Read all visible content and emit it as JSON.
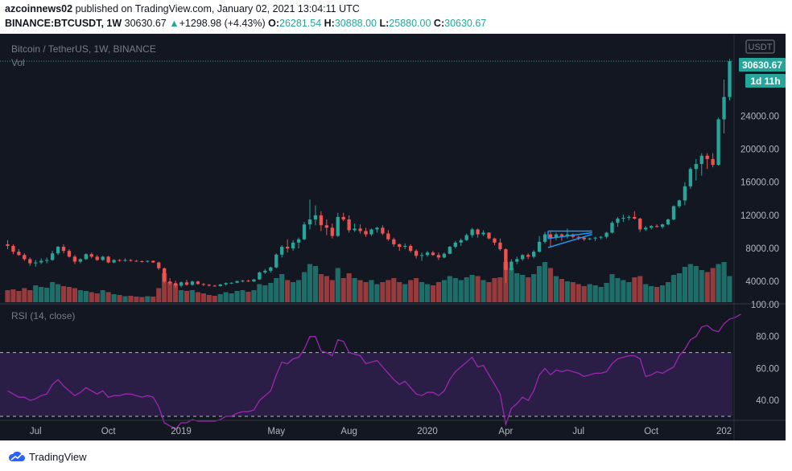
{
  "header": {
    "author": "azcoinnews02",
    "published_text": "published on TradingView.com, January 02, 2021 13:04:11 UTC",
    "symbol": "BINANCE:BTCUSDT, 1W",
    "last": "30630.67",
    "change_arrow": "▲",
    "change": "+1298.98 (+4.43%)",
    "o_label": "O:",
    "o_val": "26281.54",
    "h_label": "H:",
    "h_val": "30888.00",
    "l_label": "L:",
    "l_val": "25880.00",
    "c_label": "C:",
    "c_val": "30630.67"
  },
  "chart": {
    "legend_title": "Bitcoin / TetherUS, 1W, BINANCE",
    "vol_label": "Vol",
    "currency_badge": "USDT",
    "price_tag": "30630.67",
    "countdown_tag": "1d 11h",
    "rsi_label": "RSI (14, close)",
    "colors": {
      "up": "#26a69a",
      "down": "#ef5350",
      "background": "#131722",
      "rsi_line": "#9c27b0",
      "rsi_band": "#2a1e47",
      "triangle": "#2196f3"
    }
  },
  "footer": {
    "brand": "TradingView",
    "logo_icon": "tradingview-cloud-icon"
  },
  "chart_data": {
    "type": "candlestick",
    "price_axis_ticks": [
      "4000.00",
      "8000.00",
      "12000.00",
      "16000.00",
      "20000.00",
      "24000.00"
    ],
    "rsi_axis_ticks": [
      "100.00",
      "80.00",
      "60.00",
      "40.00"
    ],
    "time_axis_ticks": [
      "Jul",
      "Oct",
      "2019",
      "May",
      "Aug",
      "2020",
      "Apr",
      "Jul",
      "Oct",
      "202"
    ],
    "price_range": [
      1400,
      32000
    ],
    "rsi_range": [
      28,
      100
    ],
    "rsi_bands": [
      70,
      30
    ],
    "candles": [
      [
        8500,
        9000,
        7900,
        8300
      ],
      [
        8300,
        8500,
        7300,
        7600
      ],
      [
        7600,
        7900,
        7100,
        7200
      ],
      [
        7200,
        7400,
        6500,
        6700
      ],
      [
        6700,
        6900,
        5900,
        6200
      ],
      [
        6200,
        6600,
        5800,
        6300
      ],
      [
        6300,
        6800,
        6100,
        6500
      ],
      [
        6500,
        6900,
        6200,
        6600
      ],
      [
        6600,
        7700,
        6500,
        7400
      ],
      [
        7400,
        8300,
        7200,
        8200
      ],
      [
        8200,
        8500,
        7400,
        7700
      ],
      [
        7700,
        7900,
        6900,
        7000
      ],
      [
        7000,
        7200,
        6100,
        6400
      ],
      [
        6400,
        6800,
        6200,
        6700
      ],
      [
        6700,
        7400,
        6600,
        7300
      ],
      [
        7300,
        7500,
        6800,
        7000
      ],
      [
        7000,
        7200,
        6500,
        6600
      ],
      [
        6600,
        7100,
        6500,
        7000
      ],
      [
        7000,
        7100,
        6200,
        6300
      ],
      [
        6300,
        6700,
        6200,
        6600
      ],
      [
        6600,
        6700,
        6400,
        6500
      ],
      [
        6500,
        6800,
        6400,
        6600
      ],
      [
        6600,
        6700,
        6400,
        6500
      ],
      [
        6500,
        6600,
        6400,
        6450
      ],
      [
        6450,
        6550,
        6300,
        6400
      ],
      [
        6400,
        6550,
        6300,
        6500
      ],
      [
        6500,
        6550,
        6250,
        6300
      ],
      [
        6300,
        6400,
        5400,
        5600
      ],
      [
        5600,
        5700,
        3800,
        4000
      ],
      [
        4000,
        4400,
        3600,
        3800
      ],
      [
        3800,
        4100,
        3200,
        3500
      ],
      [
        3500,
        4000,
        3300,
        3900
      ],
      [
        3900,
        4200,
        3500,
        3600
      ],
      [
        3600,
        4100,
        3500,
        4000
      ],
      [
        4000,
        4100,
        3600,
        3700
      ],
      [
        3700,
        3800,
        3450,
        3600
      ],
      [
        3600,
        3700,
        3400,
        3500
      ],
      [
        3500,
        3600,
        3380,
        3450
      ],
      [
        3450,
        3700,
        3400,
        3650
      ],
      [
        3650,
        3900,
        3500,
        3800
      ],
      [
        3800,
        3900,
        3700,
        3850
      ],
      [
        3850,
        4100,
        3800,
        4050
      ],
      [
        4050,
        4200,
        3900,
        4100
      ],
      [
        4100,
        4200,
        3950,
        4000
      ],
      [
        4000,
        4300,
        3950,
        4250
      ],
      [
        4250,
        5200,
        4200,
        5100
      ],
      [
        5100,
        5500,
        4900,
        5300
      ],
      [
        5300,
        5800,
        5100,
        5700
      ],
      [
        5700,
        7400,
        5600,
        7250
      ],
      [
        7250,
        8400,
        6900,
        8200
      ],
      [
        8200,
        9100,
        7500,
        8000
      ],
      [
        8000,
        9000,
        7700,
        8700
      ],
      [
        8700,
        9300,
        8000,
        9100
      ],
      [
        9100,
        11200,
        9000,
        10900
      ],
      [
        10900,
        13900,
        10300,
        11500
      ],
      [
        11500,
        13200,
        10800,
        12000
      ],
      [
        12000,
        12500,
        10100,
        10800
      ],
      [
        10800,
        11500,
        9600,
        10500
      ],
      [
        10500,
        11000,
        9200,
        9500
      ],
      [
        9500,
        12300,
        9400,
        11800
      ],
      [
        11800,
        12300,
        11300,
        11500
      ],
      [
        11500,
        12000,
        9900,
        10200
      ],
      [
        10200,
        11000,
        10000,
        10400
      ],
      [
        10400,
        10900,
        9800,
        10100
      ],
      [
        10100,
        10500,
        9400,
        9700
      ],
      [
        9700,
        10400,
        9500,
        10300
      ],
      [
        10300,
        10600,
        9900,
        10500
      ],
      [
        10500,
        10800,
        9600,
        9800
      ],
      [
        9800,
        10200,
        8900,
        9100
      ],
      [
        9100,
        9300,
        8200,
        8500
      ],
      [
        8500,
        8600,
        7700,
        8200
      ],
      [
        8200,
        8600,
        7900,
        8300
      ],
      [
        8300,
        8500,
        7500,
        7700
      ],
      [
        7700,
        7900,
        6800,
        7100
      ],
      [
        7100,
        7500,
        6500,
        7200
      ],
      [
        7200,
        7700,
        7000,
        7500
      ],
      [
        7500,
        7700,
        7100,
        7200
      ],
      [
        7200,
        7500,
        6600,
        6900
      ],
      [
        6900,
        7500,
        6800,
        7350
      ],
      [
        7350,
        8300,
        7300,
        8200
      ],
      [
        8200,
        8900,
        8000,
        8700
      ],
      [
        8700,
        9200,
        8300,
        9000
      ],
      [
        9000,
        9800,
        8900,
        9600
      ],
      [
        9600,
        10500,
        9300,
        10300
      ],
      [
        10300,
        10400,
        9300,
        9700
      ],
      [
        9700,
        10200,
        9500,
        9900
      ],
      [
        9900,
        9950,
        9100,
        9200
      ],
      [
        9200,
        9300,
        8400,
        8700
      ],
      [
        8700,
        9200,
        7700,
        7900
      ],
      [
        7900,
        8000,
        3800,
        5400
      ],
      [
        5400,
        6700,
        5300,
        6400
      ],
      [
        6400,
        7000,
        6100,
        6700
      ],
      [
        6700,
        7300,
        6500,
        7200
      ],
      [
        7200,
        7400,
        6700,
        7000
      ],
      [
        7000,
        7800,
        6800,
        7600
      ],
      [
        7600,
        9500,
        7500,
        8800
      ],
      [
        8800,
        10000,
        8600,
        9700
      ],
      [
        9700,
        10000,
        8100,
        9300
      ],
      [
        9300,
        9900,
        9000,
        9700
      ],
      [
        9700,
        9800,
        8900,
        9500
      ],
      [
        9500,
        10400,
        9200,
        9700
      ],
      [
        9700,
        9800,
        9200,
        9400
      ],
      [
        9400,
        9500,
        9000,
        9300
      ],
      [
        9300,
        9400,
        8900,
        9100
      ],
      [
        9100,
        9300,
        9000,
        9200
      ],
      [
        9200,
        9400,
        8900,
        9300
      ],
      [
        9300,
        9500,
        9100,
        9400
      ],
      [
        9400,
        10000,
        9200,
        9900
      ],
      [
        9900,
        11300,
        9800,
        11100
      ],
      [
        11100,
        11800,
        10600,
        11600
      ],
      [
        11600,
        12100,
        11200,
        11700
      ],
      [
        11700,
        12000,
        11400,
        11800
      ],
      [
        11800,
        12500,
        11500,
        11600
      ],
      [
        11600,
        11700,
        10000,
        10300
      ],
      [
        10300,
        10700,
        10100,
        10500
      ],
      [
        10500,
        10800,
        10300,
        10700
      ],
      [
        10700,
        10900,
        10500,
        10600
      ],
      [
        10600,
        11000,
        10400,
        10900
      ],
      [
        10900,
        11600,
        10800,
        11500
      ],
      [
        11500,
        13200,
        11400,
        13100
      ],
      [
        13100,
        13900,
        12900,
        13800
      ],
      [
        13800,
        16000,
        13200,
        15500
      ],
      [
        15500,
        17800,
        15200,
        17600
      ],
      [
        17600,
        18800,
        16200,
        18200
      ],
      [
        18200,
        19500,
        16800,
        19200
      ],
      [
        19200,
        19500,
        17600,
        18800
      ],
      [
        18800,
        19500,
        17800,
        18100
      ],
      [
        18100,
        23800,
        18000,
        23600
      ],
      [
        23600,
        28400,
        21900,
        26300
      ],
      [
        26300,
        30888,
        25880,
        30630
      ]
    ],
    "volume_ratio": [
      0.3,
      0.32,
      0.28,
      0.35,
      0.3,
      0.42,
      0.38,
      0.36,
      0.5,
      0.45,
      0.4,
      0.38,
      0.35,
      0.3,
      0.28,
      0.25,
      0.22,
      0.3,
      0.25,
      0.2,
      0.18,
      0.15,
      0.16,
      0.14,
      0.13,
      0.15,
      0.14,
      0.35,
      0.72,
      0.5,
      0.45,
      0.3,
      0.28,
      0.3,
      0.25,
      0.22,
      0.18,
      0.16,
      0.2,
      0.25,
      0.22,
      0.28,
      0.3,
      0.26,
      0.3,
      0.45,
      0.42,
      0.48,
      0.6,
      0.7,
      0.55,
      0.5,
      0.55,
      0.75,
      0.95,
      0.9,
      0.7,
      0.65,
      0.55,
      0.85,
      0.6,
      0.72,
      0.6,
      0.55,
      0.5,
      0.55,
      0.45,
      0.5,
      0.55,
      0.6,
      0.5,
      0.45,
      0.55,
      0.6,
      0.5,
      0.45,
      0.42,
      0.5,
      0.55,
      0.65,
      0.6,
      0.55,
      0.62,
      0.68,
      0.65,
      0.55,
      0.5,
      0.6,
      0.62,
      1.0,
      0.85,
      0.72,
      0.68,
      0.62,
      0.7,
      0.9,
      1.0,
      0.85,
      0.65,
      0.58,
      0.52,
      0.5,
      0.45,
      0.4,
      0.45,
      0.42,
      0.38,
      0.48,
      0.7,
      0.6,
      0.55,
      0.5,
      0.62,
      0.65,
      0.45,
      0.4,
      0.38,
      0.42,
      0.5,
      0.68,
      0.72,
      0.88,
      0.95,
      0.9,
      0.8,
      0.75,
      0.85,
      0.95,
      1.0,
      0.65
    ],
    "rsi": [
      46,
      44,
      42,
      42,
      40,
      41,
      43,
      44,
      50,
      53,
      49,
      46,
      43,
      45,
      48,
      46,
      44,
      46,
      42,
      43,
      43,
      44,
      44,
      43,
      42,
      43,
      42,
      36,
      26,
      24,
      22,
      26,
      26,
      28,
      27,
      27,
      27,
      27,
      28,
      30,
      30,
      32,
      33,
      33,
      34,
      40,
      43,
      46,
      56,
      64,
      63,
      66,
      67,
      72,
      80,
      80,
      71,
      70,
      68,
      78,
      77,
      70,
      69,
      68,
      63,
      64,
      65,
      61,
      57,
      53,
      50,
      52,
      48,
      44,
      43,
      45,
      45,
      43,
      46,
      53,
      58,
      61,
      64,
      67,
      61,
      62,
      56,
      50,
      44,
      25,
      35,
      38,
      42,
      40,
      46,
      56,
      60,
      56,
      59,
      58,
      59,
      58,
      57,
      55,
      56,
      57,
      57,
      58,
      63,
      66,
      67,
      68,
      68,
      66,
      55,
      56,
      58,
      57,
      59,
      61,
      68,
      72,
      78,
      80,
      86,
      87,
      84,
      83,
      88,
      91,
      92,
      94
    ]
  }
}
